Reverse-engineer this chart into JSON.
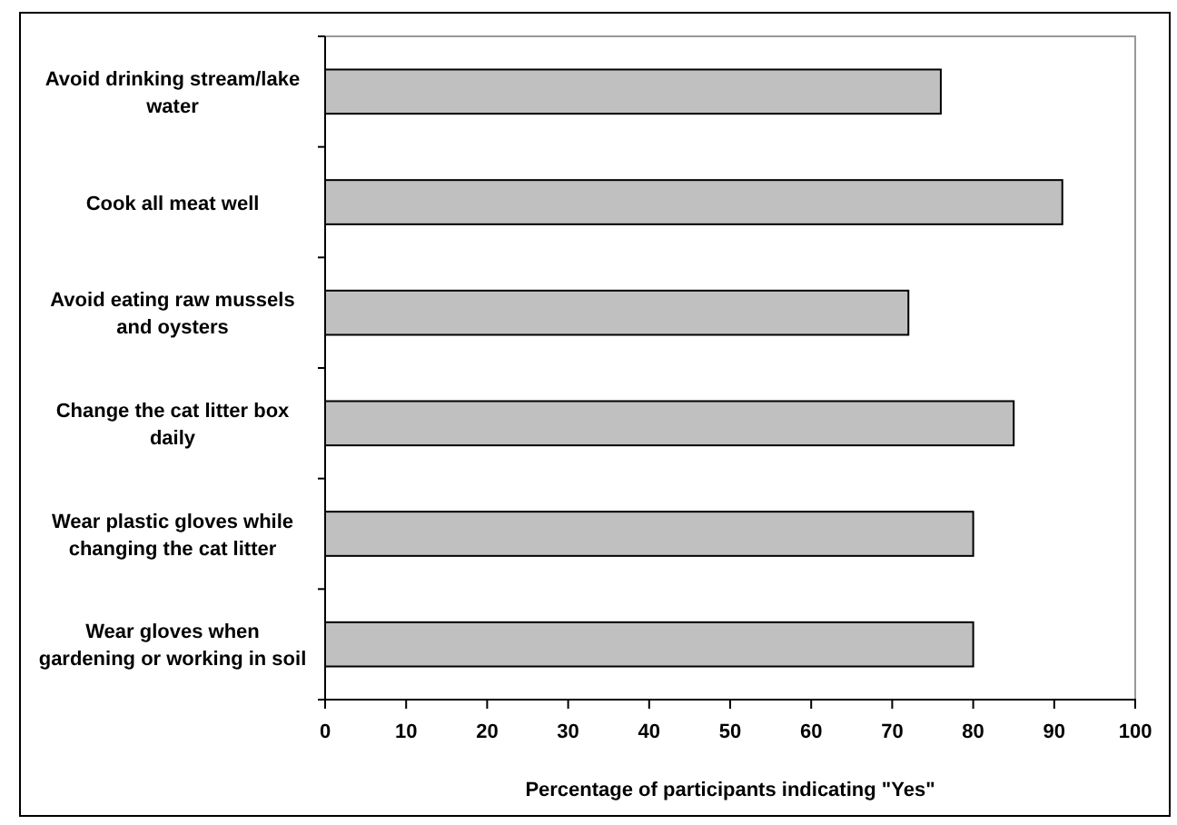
{
  "chart_data": {
    "type": "bar",
    "orientation": "horizontal",
    "xlabel": "Percentage of participants indicating \"Yes\"",
    "categories": [
      "Avoid drinking stream/lake water",
      "Cook all meat well",
      "Avoid eating raw mussels and oysters",
      "Change the cat litter box daily",
      "Wear plastic gloves while changing the cat litter",
      "Wear gloves when gardening or working in soil"
    ],
    "values": [
      76,
      91,
      72,
      85,
      80,
      80
    ],
    "color": "#c0c0c0",
    "xlim": [
      0,
      100
    ],
    "xticks": [
      0,
      10,
      20,
      30,
      40,
      50,
      60,
      70,
      80,
      90,
      100
    ],
    "grid": false
  }
}
